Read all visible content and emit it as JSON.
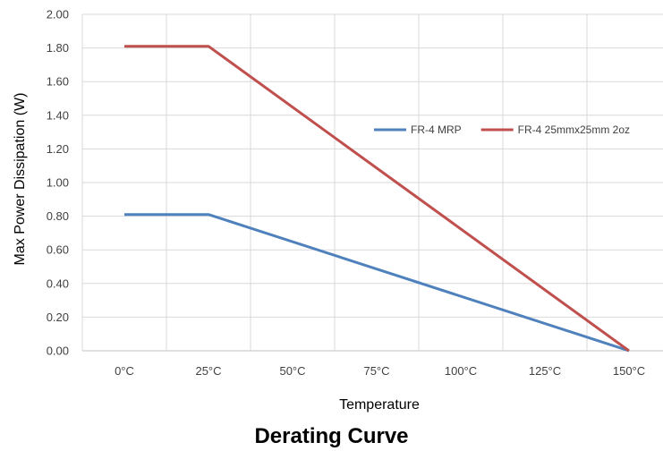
{
  "chart_data": {
    "type": "line",
    "categories": [
      "0°C",
      "25°C",
      "50°C",
      "75°C",
      "100°C",
      "125°C",
      "150°C"
    ],
    "x": [
      0,
      25,
      50,
      75,
      100,
      125,
      150
    ],
    "ylim": [
      0,
      2.0
    ],
    "y_ticks": [
      "0.00",
      "0.20",
      "0.40",
      "0.60",
      "0.80",
      "1.00",
      "1.20",
      "1.40",
      "1.60",
      "1.80",
      "2.00"
    ],
    "xlabel": "Temperature",
    "ylabel": "Max Power Dissipation (W)",
    "title": "Derating Curve",
    "legend_position": "right",
    "grid": true,
    "series": [
      {
        "name": "FR-4 MRP",
        "color": "#4f81bd",
        "points": [
          {
            "x": 0,
            "y": 0.81
          },
          {
            "x": 25,
            "y": 0.81
          },
          {
            "x": 150,
            "y": 0.0
          }
        ]
      },
      {
        "name": "FR-4 25mmx25mm 2oz",
        "color": "#c0504d",
        "points": [
          {
            "x": 0,
            "y": 1.81
          },
          {
            "x": 25,
            "y": 1.81
          },
          {
            "x": 150,
            "y": 0.0
          }
        ]
      }
    ]
  }
}
